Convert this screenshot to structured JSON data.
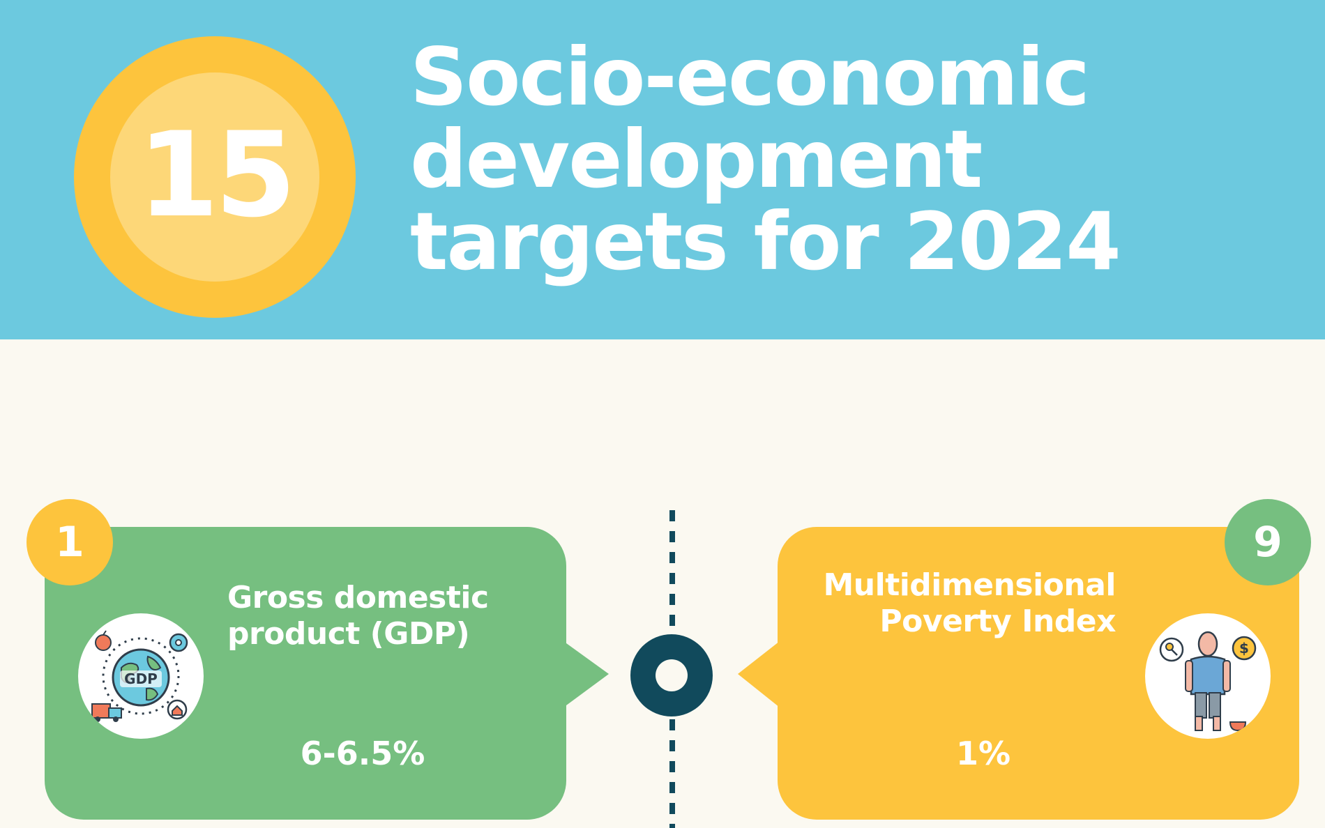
{
  "header": {
    "number": "15",
    "title_lines": [
      "Socio-economic",
      "development",
      "targets for 2024"
    ]
  },
  "cards": [
    {
      "index": "1",
      "title_lines": [
        "Gross domestic",
        "product (GDP)"
      ],
      "value": "6-6.5%",
      "icon_label": "GDP",
      "icon": "gdp-globe-icon",
      "color": "#76bf80",
      "badge_color": "#fdc43d"
    },
    {
      "index": "9",
      "title_lines": [
        "Multidimensional",
        "Poverty Index"
      ],
      "value": "1%",
      "icon": "poverty-person-icon",
      "color": "#fdc43d",
      "badge_color": "#76bf80"
    }
  ],
  "colors": {
    "header_bg": "#6cc9df",
    "page_bg": "#fbf9f1",
    "timeline": "#114a5c"
  }
}
